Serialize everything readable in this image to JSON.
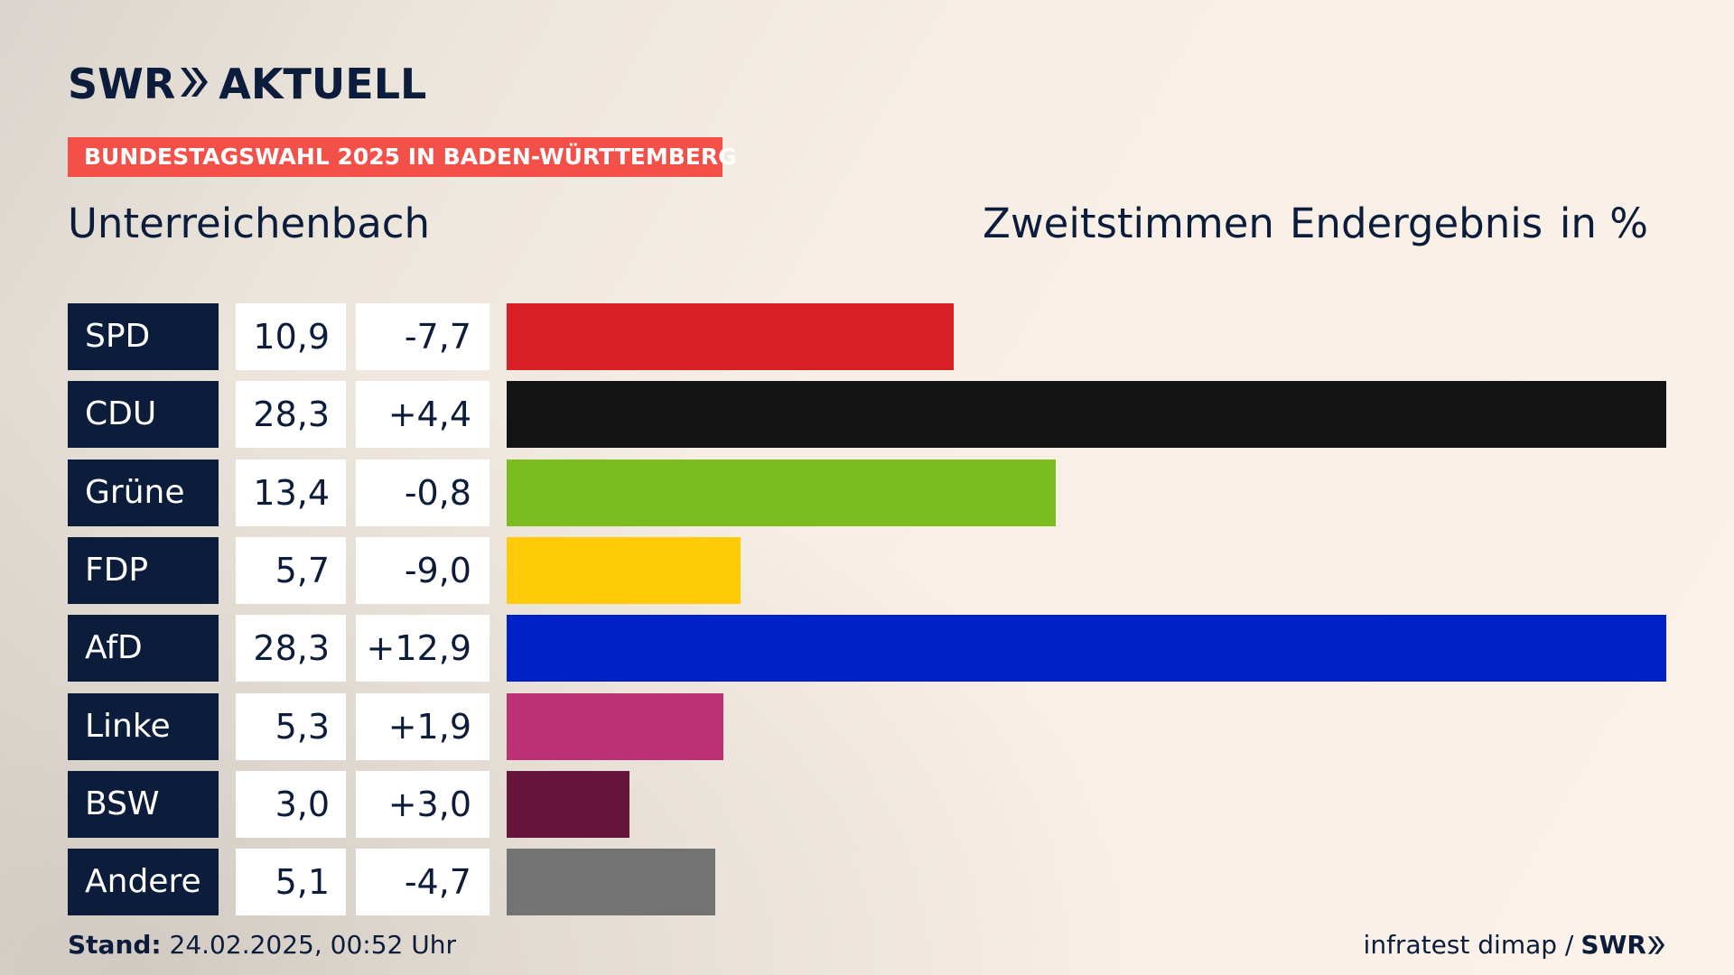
{
  "header": {
    "logo_left": "SWR",
    "logo_right": "AKTUELL",
    "banner": "BUNDESTAGSWAHL 2025 IN BADEN-WÜRTTEMBERG",
    "region": "Unterreichenbach",
    "votes_label": "Zweitstimmen",
    "result_label": "Endergebnis",
    "unit_label": "in %"
  },
  "colors": {
    "navy": "#0c1c3b",
    "banner": "#f4504a"
  },
  "chart_data": {
    "type": "bar",
    "categories": [
      "SPD",
      "CDU",
      "Grüne",
      "FDP",
      "AfD",
      "Linke",
      "BSW",
      "Andere"
    ],
    "values": [
      10.9,
      28.3,
      13.4,
      5.7,
      28.3,
      5.3,
      3.0,
      5.1
    ],
    "value_labels": [
      "10,9",
      "28,3",
      "13,4",
      "5,7",
      "28,3",
      "5,3",
      "3,0",
      "5,1"
    ],
    "diff_labels": [
      "-7,7",
      "+4,4",
      "-0,8",
      "-9,0",
      "+12,9",
      "+1,9",
      "+3,0",
      "-4,7"
    ],
    "diffs": [
      -7.7,
      4.4,
      -0.8,
      -9.0,
      12.9,
      1.9,
      3.0,
      -4.7
    ],
    "bar_colors": [
      "#d81f26",
      "#141414",
      "#7bbd1e",
      "#fdcb07",
      "#0021c8",
      "#bb3176",
      "#66153c",
      "#737373"
    ],
    "xlim": [
      0,
      28.3
    ]
  },
  "footer": {
    "stand_label": "Stand:",
    "stand_value": "24.02.2025, 00:52 Uhr",
    "source": "infratest dimap /",
    "source_logo": "SWR"
  }
}
